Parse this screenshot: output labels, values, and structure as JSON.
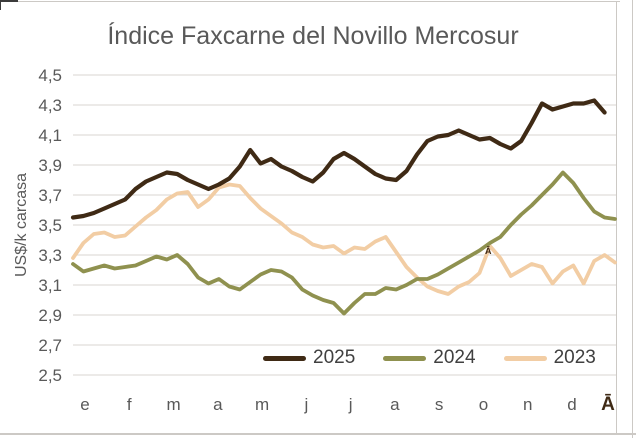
{
  "window": {
    "background": "#ffffff",
    "grid_edge_color": "#ccc9c5"
  },
  "chart_data": {
    "type": "line",
    "title": "Índice Faxcarne del Novillo Mercosur",
    "xlabel": "",
    "ylabel": "US$/k carcasa",
    "ylim": [
      2.5,
      4.5
    ],
    "ytick_step": 0.2,
    "ytick_labels": [
      "4,5",
      "4,3",
      "4,1",
      "3,9",
      "3,7",
      "3,5",
      "3,3",
      "3,1",
      "2,9",
      "2,7",
      "2,5"
    ],
    "grid": true,
    "gridline_color": "#d9d6d2",
    "text_color": "#595959",
    "legend_position": "bottom-inside",
    "x_axis_labels": [
      "e",
      "f",
      "m",
      "a",
      "m",
      "j",
      "j",
      "a",
      "s",
      "o",
      "n",
      "d"
    ],
    "x_axis_extra_label": "Ā",
    "x_axis_extra_label_color": "#3f2a15",
    "annotation": {
      "text": "Ā",
      "series": "2023",
      "at_value": 3.37,
      "month_index": 9
    },
    "x_unit": "weeks",
    "series": [
      {
        "name": "2025",
        "color": "#3f2a15",
        "stroke_width": 4.2,
        "values": [
          3.55,
          3.56,
          3.58,
          3.61,
          3.64,
          3.67,
          3.74,
          3.79,
          3.82,
          3.85,
          3.84,
          3.8,
          3.77,
          3.74,
          3.77,
          3.81,
          3.89,
          4.0,
          3.91,
          3.94,
          3.89,
          3.86,
          3.82,
          3.79,
          3.85,
          3.94,
          3.98,
          3.94,
          3.89,
          3.84,
          3.81,
          3.8,
          3.86,
          3.97,
          4.06,
          4.09,
          4.1,
          4.13,
          4.1,
          4.07,
          4.08,
          4.04,
          4.01,
          4.06,
          4.18,
          4.31,
          4.27,
          4.29,
          4.31,
          4.31,
          4.33,
          4.25
        ]
      },
      {
        "name": "2024",
        "color": "#8f914f",
        "stroke_width": 3.8,
        "values": [
          3.24,
          3.19,
          3.21,
          3.23,
          3.21,
          3.22,
          3.23,
          3.26,
          3.29,
          3.27,
          3.3,
          3.24,
          3.15,
          3.11,
          3.14,
          3.09,
          3.07,
          3.12,
          3.17,
          3.2,
          3.19,
          3.15,
          3.07,
          3.03,
          3.0,
          2.98,
          2.91,
          2.98,
          3.04,
          3.04,
          3.08,
          3.07,
          3.1,
          3.14,
          3.14,
          3.17,
          3.21,
          3.25,
          3.29,
          3.33,
          3.38,
          3.42,
          3.5,
          3.57,
          3.63,
          3.7,
          3.77,
          3.85,
          3.78,
          3.68,
          3.59,
          3.55,
          3.54
        ]
      },
      {
        "name": "2023",
        "color": "#f2cda4",
        "stroke_width": 3.8,
        "values": [
          3.28,
          3.38,
          3.44,
          3.45,
          3.42,
          3.43,
          3.49,
          3.55,
          3.6,
          3.67,
          3.71,
          3.72,
          3.62,
          3.67,
          3.75,
          3.77,
          3.76,
          3.68,
          3.61,
          3.56,
          3.51,
          3.45,
          3.42,
          3.37,
          3.35,
          3.36,
          3.31,
          3.35,
          3.34,
          3.39,
          3.42,
          3.32,
          3.22,
          3.15,
          3.09,
          3.06,
          3.04,
          3.09,
          3.12,
          3.18,
          3.36,
          3.28,
          3.16,
          3.2,
          3.24,
          3.22,
          3.11,
          3.19,
          3.23,
          3.11,
          3.26,
          3.3,
          3.25
        ]
      }
    ]
  }
}
